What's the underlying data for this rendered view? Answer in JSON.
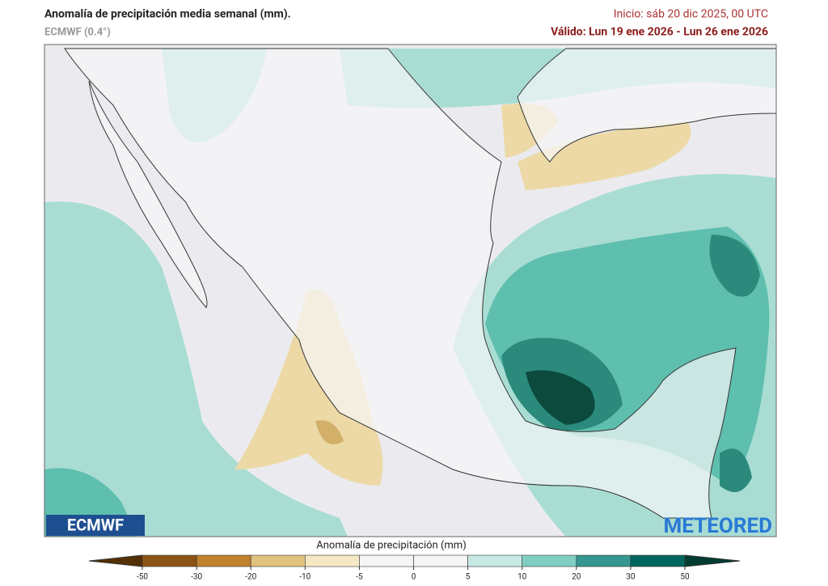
{
  "header": {
    "title": "Anomalía de precipitación media semanal (mm).",
    "model": "ECMWF (0.4°)",
    "init": "Inicio:  sáb 20 dic 2025, 00 UTC",
    "valid": "Válido: Lun 19 ene 2026 - Lun 26 ene 2026"
  },
  "logos": {
    "left": "ECMWF",
    "right": "METEORED"
  },
  "colorbar": {
    "label": "Anomalía de precipitación (mm)",
    "ticks": [
      -50,
      -30,
      -20,
      -10,
      -5,
      0,
      5,
      10,
      20,
      30,
      50
    ],
    "colors": [
      "#543005",
      "#8c5414",
      "#bf812d",
      "#dfc27d",
      "#f6e8c3",
      "#f5f5f5",
      "#f5f5f5",
      "#c7eae5",
      "#80cdc1",
      "#35978f",
      "#01665e",
      "#003c30"
    ]
  }
}
